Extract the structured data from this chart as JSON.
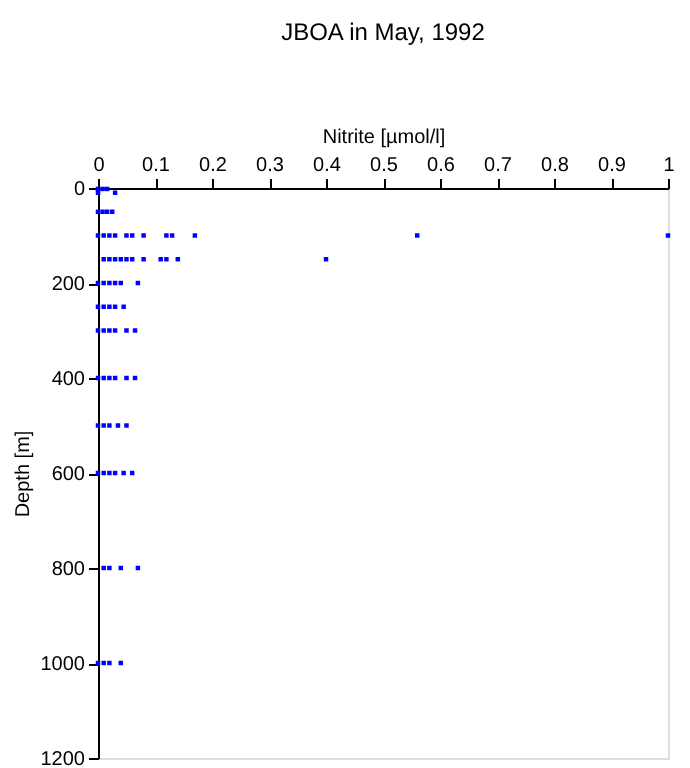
{
  "chart_data": {
    "type": "scatter",
    "title": "JBOA in May, 1992",
    "xlabel": "Nitrite [µmol/l]",
    "ylabel": "Depth [m]",
    "series": [
      {
        "color": "#0000ff",
        "x": [
          0,
          0.008,
          0.016,
          0,
          0.03,
          0,
          0.008,
          0.016,
          0.025,
          0,
          0.01,
          0.02,
          0.03,
          0.05,
          0.06,
          0.08,
          0.12,
          0.13,
          0.17,
          0.56,
          1.0,
          0.01,
          0.02,
          0.03,
          0.04,
          0.05,
          0.06,
          0.08,
          0.11,
          0.12,
          0.14,
          0.4,
          0,
          0.01,
          0.02,
          0.03,
          0.04,
          0.07,
          0,
          0.01,
          0.02,
          0.03,
          0.045,
          0,
          0.01,
          0.02,
          0.03,
          0.05,
          0.065,
          0,
          0.01,
          0.02,
          0.03,
          0.05,
          0.065,
          0,
          0.01,
          0.02,
          0.035,
          0.05,
          0,
          0.01,
          0.02,
          0.03,
          0.045,
          0.06,
          0.01,
          0.02,
          0.04,
          0.07,
          0,
          0.01,
          0.02,
          0.04
        ],
        "values": [
          2,
          2,
          2,
          10,
          10,
          50,
          50,
          50,
          50,
          100,
          100,
          100,
          100,
          100,
          100,
          100,
          100,
          100,
          100,
          100,
          100,
          150,
          150,
          150,
          150,
          150,
          150,
          150,
          150,
          150,
          150,
          150,
          200,
          200,
          200,
          200,
          200,
          200,
          250,
          250,
          250,
          250,
          250,
          300,
          300,
          300,
          300,
          300,
          300,
          400,
          400,
          400,
          400,
          400,
          400,
          500,
          500,
          500,
          500,
          500,
          600,
          600,
          600,
          600,
          600,
          600,
          800,
          800,
          800,
          800,
          1000,
          1000,
          1000,
          1000
        ]
      }
    ],
    "xlim": [
      0,
      1
    ],
    "xticks": [
      0,
      0.1,
      0.2,
      0.3,
      0.4,
      0.5,
      0.6,
      0.7,
      0.8,
      0.9,
      1
    ],
    "ylim": [
      1200,
      0
    ],
    "yticks": [
      0,
      200,
      400,
      600,
      800,
      1000,
      1200
    ],
    "grid": false,
    "marker": "square"
  }
}
